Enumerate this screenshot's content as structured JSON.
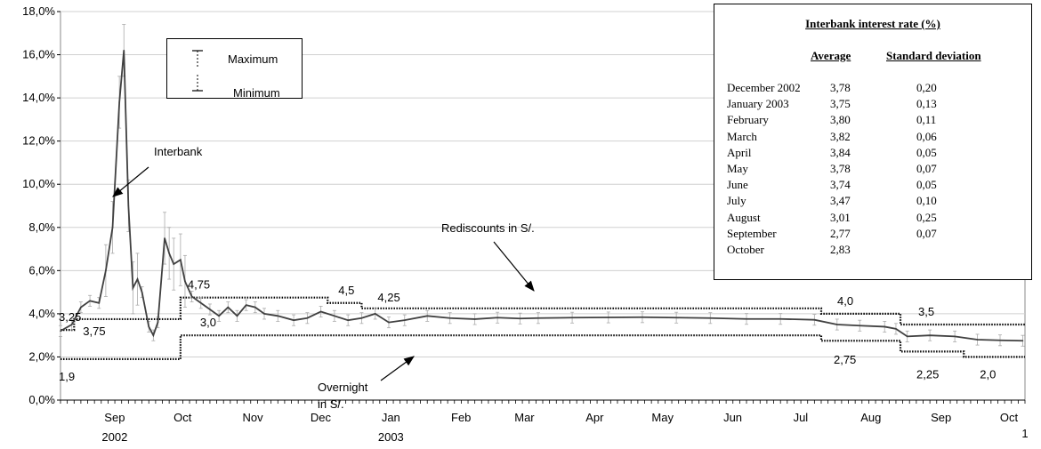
{
  "chart_data": {
    "type": "line",
    "y_axis": {
      "ticks": [
        "0,0%",
        "2,0%",
        "4,0%",
        "6,0%",
        "8,0%",
        "10,0%",
        "12,0%",
        "14,0%",
        "16,0%",
        "18,0%"
      ],
      "ylim": [
        0,
        18
      ]
    },
    "x_axis": {
      "months": [
        "Sep",
        "Oct",
        "Nov",
        "Dec",
        "Jan",
        "Feb",
        "Mar",
        "Apr",
        "May",
        "Jun",
        "Jul",
        "Aug",
        "Sep",
        "Oct"
      ],
      "years": [
        "2002",
        "2003"
      ],
      "end_label": "1",
      "start": "2002-08-01",
      "end": "2003-10-01"
    },
    "series": [
      {
        "name": "Interbank",
        "color": "#404040",
        "points": [
          [
            "2002-08-01",
            3.2
          ],
          [
            "2002-08-06",
            3.5
          ],
          [
            "2002-08-10",
            4.3
          ],
          [
            "2002-08-14",
            4.6
          ],
          [
            "2002-08-18",
            4.5
          ],
          [
            "2002-08-21",
            6.0
          ],
          [
            "2002-08-24",
            8.0
          ],
          [
            "2002-08-27",
            13.8
          ],
          [
            "2002-08-29",
            16.2
          ],
          [
            "2002-08-31",
            9.0
          ],
          [
            "2002-09-02",
            5.2
          ],
          [
            "2002-09-04",
            5.6
          ],
          [
            "2002-09-06",
            5.0
          ],
          [
            "2002-09-09",
            3.4
          ],
          [
            "2002-09-11",
            3.0
          ],
          [
            "2002-09-13",
            3.6
          ],
          [
            "2002-09-16",
            7.5
          ],
          [
            "2002-09-18",
            6.8
          ],
          [
            "2002-09-20",
            6.3
          ],
          [
            "2002-09-23",
            6.5
          ],
          [
            "2002-09-25",
            5.5
          ],
          [
            "2002-09-28",
            4.8
          ],
          [
            "2002-10-02",
            4.5
          ],
          [
            "2002-10-06",
            4.2
          ],
          [
            "2002-10-10",
            3.9
          ],
          [
            "2002-10-14",
            4.3
          ],
          [
            "2002-10-18",
            3.9
          ],
          [
            "2002-10-22",
            4.4
          ],
          [
            "2002-10-26",
            4.3
          ],
          [
            "2002-10-30",
            4.0
          ],
          [
            "2002-11-05",
            3.9
          ],
          [
            "2002-11-12",
            3.7
          ],
          [
            "2002-11-18",
            3.8
          ],
          [
            "2002-11-24",
            4.1
          ],
          [
            "2002-11-30",
            3.9
          ],
          [
            "2002-12-06",
            3.7
          ],
          [
            "2002-12-12",
            3.8
          ],
          [
            "2002-12-18",
            4.0
          ],
          [
            "2002-12-24",
            3.6
          ],
          [
            "2002-12-31",
            3.7
          ],
          [
            "2003-01-10",
            3.9
          ],
          [
            "2003-01-20",
            3.8
          ],
          [
            "2003-01-31",
            3.75
          ],
          [
            "2003-02-10",
            3.82
          ],
          [
            "2003-02-20",
            3.78
          ],
          [
            "2003-02-28",
            3.8
          ],
          [
            "2003-03-15",
            3.82
          ],
          [
            "2003-03-31",
            3.83
          ],
          [
            "2003-04-15",
            3.84
          ],
          [
            "2003-04-30",
            3.82
          ],
          [
            "2003-05-15",
            3.8
          ],
          [
            "2003-05-31",
            3.76
          ],
          [
            "2003-06-15",
            3.76
          ],
          [
            "2003-06-30",
            3.72
          ],
          [
            "2003-07-10",
            3.5
          ],
          [
            "2003-07-20",
            3.45
          ],
          [
            "2003-07-31",
            3.4
          ],
          [
            "2003-08-05",
            3.3
          ],
          [
            "2003-08-10",
            2.95
          ],
          [
            "2003-08-20",
            3.0
          ],
          [
            "2003-08-31",
            2.95
          ],
          [
            "2003-09-10",
            2.8
          ],
          [
            "2003-09-20",
            2.77
          ],
          [
            "2003-09-30",
            2.75
          ]
        ]
      },
      {
        "name": "Rediscounts in S/.",
        "color": "#000000",
        "style": "dotted",
        "steps": [
          [
            "2002-08-01",
            3.25
          ],
          [
            "2002-08-07",
            3.75
          ],
          [
            "2002-09-23",
            4.75
          ],
          [
            "2002-11-27",
            4.5
          ],
          [
            "2002-12-12",
            4.25
          ],
          [
            "2003-07-03",
            4.0
          ],
          [
            "2003-08-07",
            3.5
          ],
          [
            "2003-10-01",
            3.5
          ]
        ]
      },
      {
        "name": "Overnight in S/.",
        "color": "#000000",
        "style": "dotted",
        "steps": [
          [
            "2002-08-01",
            1.9
          ],
          [
            "2002-09-23",
            3.0
          ],
          [
            "2003-07-03",
            2.75
          ],
          [
            "2003-08-07",
            2.25
          ],
          [
            "2003-09-04",
            2.0
          ],
          [
            "2003-10-01",
            2.0
          ]
        ]
      }
    ],
    "legend": {
      "maximum": "Maximum",
      "minimum": "Minimum"
    },
    "annotations": {
      "interbank": "Interbank",
      "rediscounts": "Rediscounts in S/.",
      "overnight_line1": "Overnight",
      "overnight_line2": "in S/.",
      "step_labels": [
        "3,25",
        "3,75",
        "4,75",
        "4,5",
        "4,25",
        "4,0",
        "3,5",
        "1,9",
        "3,0",
        "2,75",
        "2,25",
        "2,0"
      ]
    },
    "table": {
      "title": "Interbank interest rate (%)",
      "col_avg": "Average",
      "col_sd": "Standard deviation",
      "rows": [
        {
          "month": "December 2002",
          "avg": "3,78",
          "sd": "0,20"
        },
        {
          "month": "January 2003",
          "avg": "3,75",
          "sd": "0,13"
        },
        {
          "month": "February",
          "avg": "3,80",
          "sd": "0,11"
        },
        {
          "month": "March",
          "avg": "3,82",
          "sd": "0,06"
        },
        {
          "month": "April",
          "avg": "3,84",
          "sd": "0,05"
        },
        {
          "month": "May",
          "avg": "3,78",
          "sd": "0,07"
        },
        {
          "month": "June",
          "avg": "3,74",
          "sd": "0,05"
        },
        {
          "month": "July",
          "avg": "3,47",
          "sd": "0,10"
        },
        {
          "month": "August",
          "avg": "3,01",
          "sd": "0,25"
        },
        {
          "month": "September",
          "avg": "2,77",
          "sd": "0,07"
        },
        {
          "month": "October",
          "avg": "2,83",
          "sd": ""
        }
      ]
    }
  }
}
